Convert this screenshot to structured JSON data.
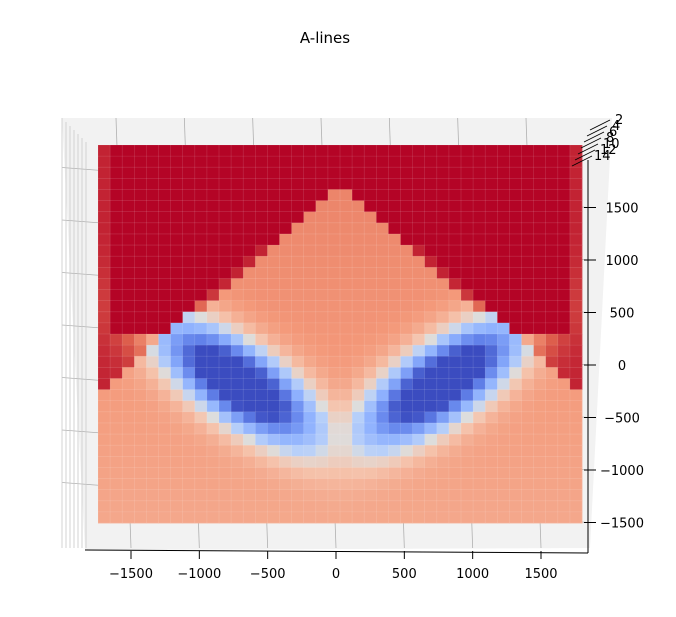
{
  "chart_data": {
    "type": "surface",
    "title": "A-lines",
    "view": "top-down 3D surface (viewed from above, slight tilt)",
    "colormap": "coolwarm",
    "colors": {
      "low": "#3b4cc0",
      "mid": "#dddddd",
      "high": "#b40426",
      "pane": "#f2f2f2",
      "grid": "#b0b0b0"
    },
    "x_axis": {
      "ticks": [
        -1500,
        -1000,
        -500,
        0,
        500,
        1000,
        1500
      ],
      "tick_labels": [
        "−1500",
        "−1000",
        "−500",
        "0",
        "500",
        "1000",
        "1500"
      ],
      "range": [
        -1850,
        1850
      ]
    },
    "y_axis": {
      "ticks": [
        1500,
        1000,
        500,
        0,
        -500,
        -1000,
        -1500
      ],
      "tick_labels": [
        "1500",
        "1000",
        "500",
        "0",
        "−500",
        "−1000",
        "−1500"
      ],
      "range": [
        -1600,
        1950
      ]
    },
    "z_axis": {
      "ticks": [
        2,
        4,
        6,
        8,
        10,
        12,
        14
      ],
      "tick_labels": [
        "2",
        "4",
        "6",
        "8",
        "10",
        "12",
        "14"
      ]
    },
    "surface": {
      "description": "Values saturate high above a V-shaped boundary; two low (blue) lobes appear below it, mirrored about x=0.",
      "value_range": [
        0,
        1
      ]
    }
  }
}
